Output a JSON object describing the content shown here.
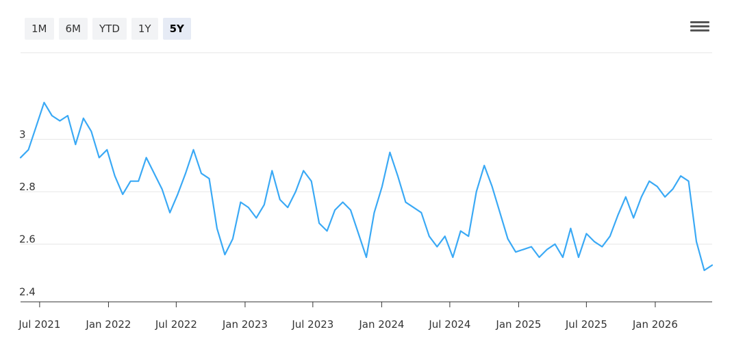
{
  "toolbar": {
    "ranges": [
      {
        "label": "1M",
        "active": false
      },
      {
        "label": "6M",
        "active": false
      },
      {
        "label": "YTD",
        "active": false
      },
      {
        "label": "1Y",
        "active": false
      },
      {
        "label": "5Y",
        "active": true
      }
    ],
    "menu_icon": "hamburger-menu-icon"
  },
  "chart_data": {
    "type": "line",
    "title": "",
    "xlabel": "",
    "ylabel": "",
    "ylim": [
      2.38,
      3.33
    ],
    "xlim": [
      "2021-05-11",
      "2026-06-02"
    ],
    "grid": true,
    "line_color": "#3aa9f5",
    "y_ticks": [
      "2.4",
      "2.6",
      "2.8",
      "3"
    ],
    "x_ticks": [
      "Jul 2021",
      "Jan 2022",
      "Jul 2022",
      "Jan 2023",
      "Jul 2023",
      "Jan 2024",
      "Jul 2024",
      "Jan 2025",
      "Jul 2025",
      "Jan 2026"
    ],
    "x_tick_dates": [
      "2021-07-01",
      "2022-01-01",
      "2022-07-01",
      "2023-01-01",
      "2023-07-01",
      "2024-01-01",
      "2024-07-01",
      "2025-01-01",
      "2025-07-01",
      "2026-01-01"
    ],
    "series": [
      {
        "x": [
          "2021-05-11",
          "2021-06-01",
          "2021-06-22",
          "2021-07-13",
          "2021-08-03",
          "2021-08-24",
          "2021-09-14",
          "2021-10-05",
          "2021-10-26",
          "2021-11-16",
          "2021-12-07",
          "2021-12-28",
          "2022-01-18",
          "2022-02-08",
          "2022-03-01",
          "2022-03-22",
          "2022-04-12",
          "2022-05-03",
          "2022-05-24",
          "2022-06-14",
          "2022-07-05",
          "2022-07-26",
          "2022-08-16",
          "2022-09-06",
          "2022-09-27",
          "2022-10-18",
          "2022-11-08",
          "2022-11-29",
          "2022-12-20",
          "2023-01-10",
          "2023-01-31",
          "2023-02-21",
          "2023-03-14",
          "2023-04-04",
          "2023-04-25",
          "2023-05-16",
          "2023-06-06",
          "2023-06-27",
          "2023-07-18",
          "2023-08-08",
          "2023-08-29",
          "2023-09-19",
          "2023-10-10",
          "2023-10-31",
          "2023-11-21",
          "2023-12-12",
          "2024-01-02",
          "2024-01-23",
          "2024-02-13",
          "2024-03-05",
          "2024-03-26",
          "2024-04-16",
          "2024-05-07",
          "2024-05-28",
          "2024-06-18",
          "2024-07-09",
          "2024-07-30",
          "2024-08-20",
          "2024-09-10",
          "2024-10-01",
          "2024-10-22",
          "2024-11-12",
          "2024-12-03",
          "2024-12-24",
          "2025-01-14",
          "2025-02-04",
          "2025-02-25",
          "2025-03-18",
          "2025-04-08",
          "2025-04-29",
          "2025-05-20",
          "2025-06-10",
          "2025-07-01",
          "2025-07-22",
          "2025-08-12",
          "2025-09-02",
          "2025-09-23",
          "2025-10-14",
          "2025-11-04",
          "2025-11-25",
          "2025-12-16",
          "2026-01-06",
          "2026-01-27",
          "2026-02-17",
          "2026-03-10",
          "2026-03-31",
          "2026-04-21",
          "2026-05-12",
          "2026-06-02"
        ],
        "y": [
          2.93,
          2.96,
          3.05,
          3.14,
          3.09,
          3.07,
          3.09,
          2.98,
          3.08,
          3.03,
          2.93,
          2.96,
          2.86,
          2.79,
          2.84,
          2.84,
          2.93,
          2.87,
          2.81,
          2.72,
          2.79,
          2.87,
          2.96,
          2.87,
          2.85,
          2.66,
          2.56,
          2.62,
          2.76,
          2.74,
          2.7,
          2.75,
          2.88,
          2.77,
          2.74,
          2.8,
          2.88,
          2.84,
          2.68,
          2.65,
          2.73,
          2.76,
          2.73,
          2.64,
          2.55,
          2.72,
          2.82,
          2.95,
          2.86,
          2.76,
          2.74,
          2.72,
          2.63,
          2.59,
          2.63,
          2.55,
          2.65,
          2.63,
          2.8,
          2.9,
          2.82,
          2.72,
          2.62,
          2.57,
          2.58,
          2.59,
          2.55,
          2.58,
          2.6,
          2.55,
          2.66,
          2.55,
          2.64,
          2.61,
          2.59,
          2.63,
          2.71,
          2.78,
          2.7,
          2.78,
          2.84,
          2.82,
          2.78,
          2.81,
          2.86,
          2.84,
          2.61,
          2.5,
          2.52
        ]
      }
    ]
  }
}
